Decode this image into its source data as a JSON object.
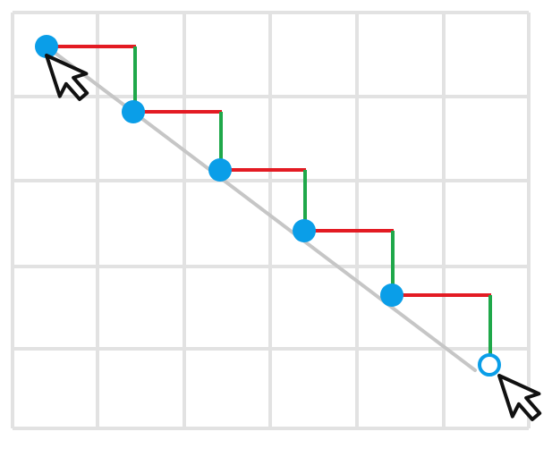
{
  "diagram": {
    "grid": {
      "columns": 6,
      "rows": 5,
      "line_color": "#e2e2e2"
    },
    "path": {
      "color": "#c6c6c6"
    },
    "step_colors": {
      "horizontal": "#e31b23",
      "vertical": "#1fa84a"
    },
    "node_color": "#0a9ee8",
    "nodes": [
      {
        "kind": "filled"
      },
      {
        "kind": "filled"
      },
      {
        "kind": "filled"
      },
      {
        "kind": "filled"
      },
      {
        "kind": "filled"
      },
      {
        "kind": "hollow"
      }
    ],
    "cursors": [
      {
        "name": "cursor-start",
        "icon": "mouse-pointer-icon"
      },
      {
        "name": "cursor-end",
        "icon": "mouse-pointer-icon"
      }
    ]
  }
}
